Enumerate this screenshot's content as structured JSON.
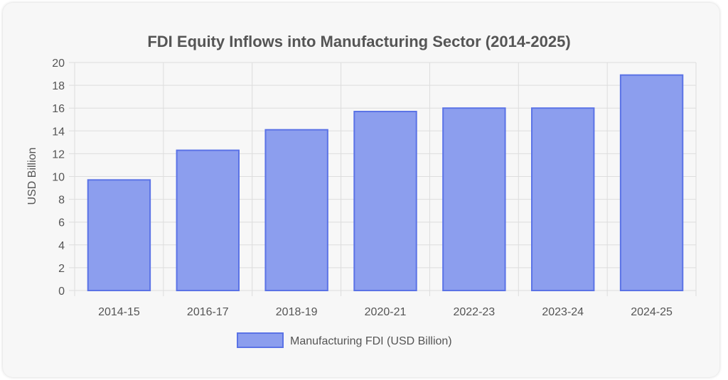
{
  "chart_data": {
    "type": "bar",
    "title": "FDI Equity Inflows into Manufacturing Sector (2014-2025)",
    "xlabel": "",
    "ylabel": "USD Billion",
    "categories": [
      "2014-15",
      "2016-17",
      "2018-19",
      "2020-21",
      "2022-23",
      "2023-24",
      "2024-25"
    ],
    "series": [
      {
        "name": "Manufacturing FDI (USD Billion)",
        "values": [
          9.7,
          12.3,
          14.1,
          15.7,
          16.0,
          16.0,
          18.9
        ]
      }
    ],
    "ylim": [
      0,
      20
    ],
    "yticks": [
      0,
      2,
      4,
      6,
      8,
      10,
      12,
      14,
      16,
      18,
      20
    ],
    "grid": true,
    "legend_position": "bottom",
    "colors": {
      "bar_fill": "#8c9eee",
      "bar_stroke": "#5b73e6",
      "grid": "#dddddd",
      "text": "#555555"
    }
  }
}
